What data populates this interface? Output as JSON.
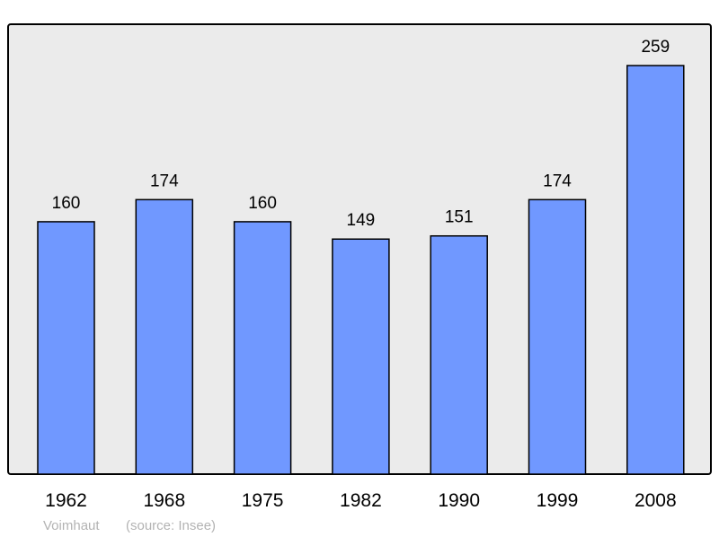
{
  "chart_data": {
    "type": "bar",
    "categories": [
      "1962",
      "1968",
      "1975",
      "1982",
      "1990",
      "1999",
      "2008"
    ],
    "values": [
      160,
      174,
      160,
      149,
      151,
      174,
      259
    ],
    "title": "",
    "xlabel": "",
    "ylabel": "",
    "ylim": [
      0,
      285
    ],
    "grid": false,
    "data_labels": true,
    "colors": {
      "bar": "#7098ff",
      "background": "#ebebeb",
      "border": "#000000"
    }
  },
  "footer": {
    "place": "Voimhaut",
    "source": "(source: Insee)"
  }
}
